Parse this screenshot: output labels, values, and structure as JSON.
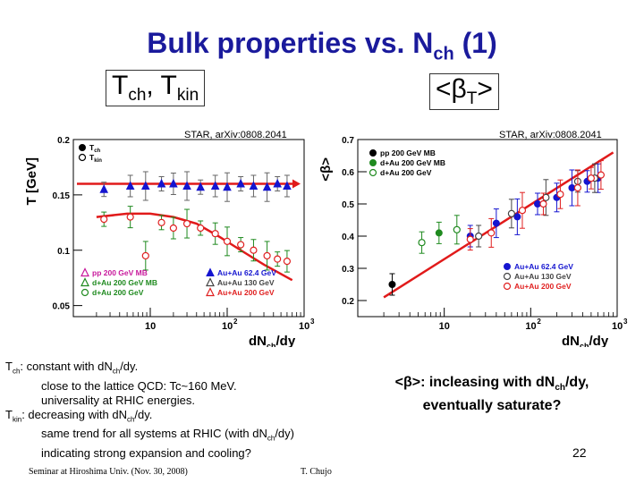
{
  "title": {
    "text": "Bulk properties vs. N",
    "sub": "ch",
    "suffix": " (1)"
  },
  "left_box": {
    "t1": "T",
    "s1": "ch",
    "mid": ", T",
    "s2": "kin"
  },
  "right_box": {
    "pre": "<β",
    "sub": "T",
    "post": ">"
  },
  "citations": {
    "left": "STAR, arXiv:0808.2041",
    "right": "STAR, arXiv:0808.2041"
  },
  "colors": {
    "title": "#1a1a9c",
    "fit_line": "#e11a1a",
    "blue": "#1515d0",
    "green": "#1f8a1f",
    "red": "#e02020",
    "pink": "#e060c0",
    "magenta": "#c8199c"
  },
  "chart_data": [
    {
      "type": "scatter",
      "ylabel": "T [GeV]",
      "xlabel": {
        "main": "dN",
        "sub": "ch",
        "post": "/dy"
      },
      "xscale": "log",
      "xlim": [
        1,
        1000
      ],
      "ylim": [
        0.04,
        0.2
      ],
      "xticks": [
        {
          "v": 10,
          "base": "10",
          "exp": ""
        },
        {
          "v": 100,
          "base": "10",
          "exp": "2"
        },
        {
          "v": 1000,
          "base": "10",
          "exp": "3"
        }
      ],
      "yticks": [
        {
          "v": 0.05,
          "label": "0.05"
        },
        {
          "v": 0.1,
          "label": "0.1"
        },
        {
          "v": 0.15,
          "label": "0.15"
        },
        {
          "v": 0.2,
          "label": "0.2"
        }
      ],
      "legend_top": [
        {
          "label": "T",
          "sub": "ch",
          "marker": "filled-circle"
        },
        {
          "label": "T",
          "sub": "kin",
          "marker": "open-circle"
        }
      ],
      "legend_bottom_left": [
        {
          "label": "pp 200 GeV MB",
          "marker": "open-triangle",
          "color": "#c8199c"
        },
        {
          "label": "d+Au 200 GeV MB",
          "marker": "open-triangle",
          "color": "#1f8a1f"
        },
        {
          "label": "d+Au 200 GeV",
          "marker": "open-circle",
          "color": "#1f8a1f"
        }
      ],
      "legend_bottom_right": [
        {
          "label": "Au+Au 62.4 GeV",
          "marker": "filled-triangle",
          "color": "#1515d0"
        },
        {
          "label": "Au+Au 130 GeV",
          "marker": "open-triangle",
          "color": "#444444"
        },
        {
          "label": "Au+Au 200 GeV",
          "marker": "open-triangle",
          "color": "#e02020"
        }
      ],
      "series": [
        {
          "name": "T_ch",
          "points": [
            [
              2.5,
              0.155
            ],
            [
              5.5,
              0.158
            ],
            [
              8.7,
              0.158
            ],
            [
              14,
              0.16
            ],
            [
              20,
              0.16
            ],
            [
              30,
              0.158
            ],
            [
              45,
              0.157
            ],
            [
              70,
              0.158
            ],
            [
              100,
              0.157
            ],
            [
              150,
              0.16
            ],
            [
              220,
              0.158
            ],
            [
              330,
              0.157
            ],
            [
              450,
              0.16
            ],
            [
              600,
              0.158
            ]
          ],
          "color": "#1515d0"
        },
        {
          "name": "T_kin",
          "points": [
            [
              2.5,
              0.128
            ],
            [
              5.5,
              0.13
            ],
            [
              8.7,
              0.095
            ],
            [
              14,
              0.125
            ],
            [
              20,
              0.12
            ],
            [
              30,
              0.124
            ],
            [
              45,
              0.12
            ],
            [
              70,
              0.115
            ],
            [
              100,
              0.108
            ],
            [
              150,
              0.105
            ],
            [
              220,
              0.1
            ],
            [
              330,
              0.095
            ],
            [
              450,
              0.092
            ],
            [
              600,
              0.09
            ]
          ],
          "color": "#e02020"
        }
      ],
      "fits": [
        {
          "kind": "flat",
          "value": 0.16,
          "arrow": true
        },
        {
          "kind": "curve",
          "points": [
            [
              2,
              0.13
            ],
            [
              5,
              0.133
            ],
            [
              10,
              0.133
            ],
            [
              20,
              0.13
            ],
            [
              40,
              0.124
            ],
            [
              80,
              0.112
            ],
            [
              150,
              0.1
            ],
            [
              300,
              0.087
            ],
            [
              700,
              0.073
            ]
          ]
        }
      ]
    },
    {
      "type": "scatter",
      "ylabel": "<β>",
      "xlabel": {
        "main": "dN",
        "sub": "ch",
        "post": "/dy"
      },
      "xscale": "log",
      "xlim": [
        1,
        1000
      ],
      "ylim": [
        0.15,
        0.7
      ],
      "xticks": [
        {
          "v": 10,
          "base": "10",
          "exp": ""
        },
        {
          "v": 100,
          "base": "10",
          "exp": "2"
        },
        {
          "v": 1000,
          "base": "10",
          "exp": "3"
        }
      ],
      "yticks": [
        {
          "v": 0.2,
          "label": "0.2"
        },
        {
          "v": 0.3,
          "label": "0.3"
        },
        {
          "v": 0.4,
          "label": "0.4"
        },
        {
          "v": 0.5,
          "label": "0.5"
        },
        {
          "v": 0.6,
          "label": "0.6"
        },
        {
          "v": 0.7,
          "label": "0.7"
        }
      ],
      "legend_top": [
        {
          "label": "pp 200 GeV MB",
          "marker": "filled-circle",
          "color": "#000000"
        },
        {
          "label": "d+Au 200 GeV MB",
          "marker": "filled-circle",
          "color": "#1f8a1f"
        },
        {
          "label": "d+Au 200 GeV",
          "marker": "open-circle",
          "color": "#1f8a1f"
        }
      ],
      "legend_bottom_right": [
        {
          "label": "Au+Au 62.4 GeV",
          "marker": "filled-circle",
          "color": "#1515d0"
        },
        {
          "label": "Au+Au 130 GeV",
          "marker": "open-circle",
          "color": "#444444"
        },
        {
          "label": "Au+Au 200 GeV",
          "marker": "open-circle",
          "color": "#e02020"
        }
      ],
      "series": [
        {
          "name": "pp",
          "points": [
            [
              2.5,
              0.25
            ]
          ],
          "color": "#000000"
        },
        {
          "name": "dAu MB",
          "points": [
            [
              8.7,
              0.41
            ]
          ],
          "color": "#1f8a1f"
        },
        {
          "name": "dAu",
          "points": [
            [
              5.5,
              0.38
            ],
            [
              14,
              0.42
            ]
          ],
          "color": "#1f8a1f"
        },
        {
          "name": "AuAu 62.4",
          "points": [
            [
              20,
              0.4
            ],
            [
              40,
              0.44
            ],
            [
              70,
              0.46
            ],
            [
              120,
              0.5
            ],
            [
              200,
              0.52
            ],
            [
              300,
              0.55
            ],
            [
              450,
              0.57
            ],
            [
              600,
              0.58
            ]
          ],
          "color": "#1515d0"
        },
        {
          "name": "AuAu 130",
          "points": [
            [
              25,
              0.4
            ],
            [
              60,
              0.47
            ],
            [
              150,
              0.52
            ],
            [
              350,
              0.57
            ],
            [
              550,
              0.58
            ]
          ],
          "color": "#444444"
        },
        {
          "name": "AuAu 200",
          "points": [
            [
              20,
              0.39
            ],
            [
              35,
              0.41
            ],
            [
              80,
              0.48
            ],
            [
              140,
              0.5
            ],
            [
              220,
              0.53
            ],
            [
              350,
              0.55
            ],
            [
              500,
              0.58
            ],
            [
              650,
              0.59
            ]
          ],
          "color": "#e02020"
        }
      ],
      "fits": [
        {
          "kind": "line",
          "points": [
            [
              2,
              0.21
            ],
            [
              900,
              0.66
            ]
          ]
        }
      ]
    }
  ],
  "left_notes": {
    "l1": {
      "a": "T",
      "b": "ch",
      "c": ": constant with dN",
      "d": "ch",
      "e": "/dy."
    },
    "l2": "close to the lattice QCD: Tc~160 MeV.",
    "l3": "universality at RHIC energies.",
    "l4": {
      "a": "T",
      "b": "kin",
      "c": ": decreasing with dN",
      "d": "ch",
      "e": "/dy."
    },
    "l5": {
      "a": "same trend for all systems at RHIC (with dN",
      "b": "ch",
      "c": "/dy)"
    },
    "l6": "indicating strong expansion and cooling?"
  },
  "right_note": {
    "a": "<β>: incleasing with dN",
    "b": "ch",
    "c": "/dy,",
    "line2": "eventually saturate?"
  },
  "footer": {
    "left": "Seminar at Hiroshima Univ. (Nov. 30, 2008)",
    "right": "T. Chujo",
    "page": "22"
  }
}
